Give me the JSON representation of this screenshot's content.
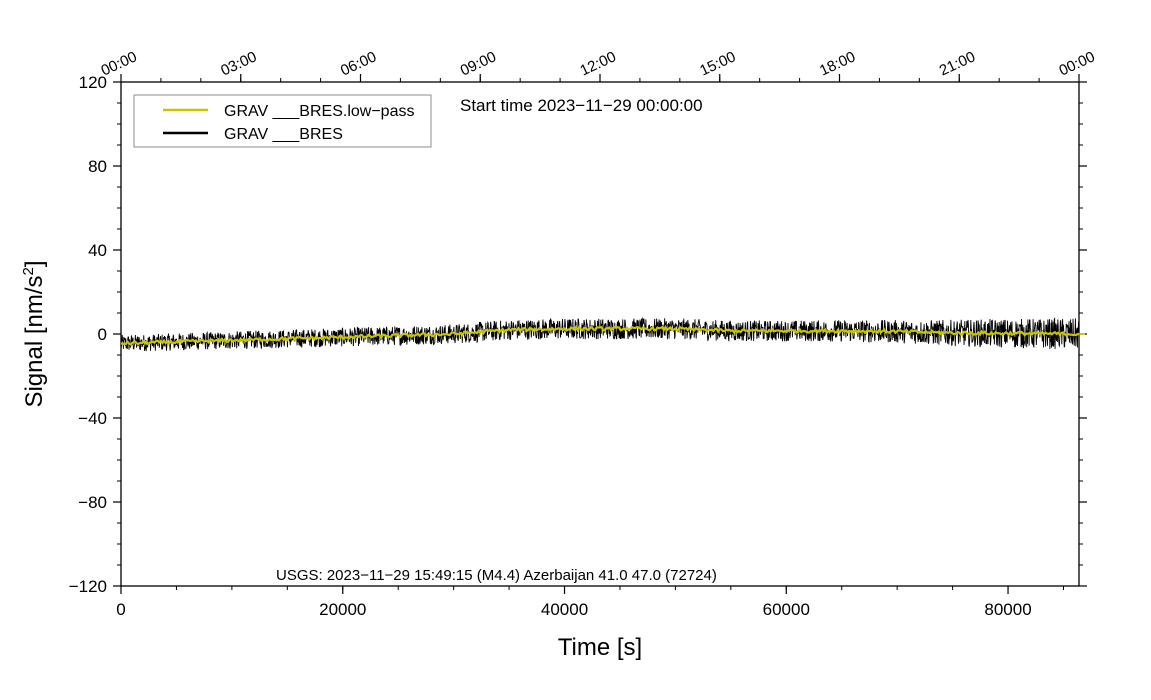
{
  "chart_data": {
    "type": "line",
    "x_unit": "s",
    "xlabel": "Time [s]",
    "ylabel": "Signal [nm/s",
    "ylabel_superscript": "2",
    "ylabel_suffix": "]",
    "xlim": [
      0,
      86400
    ],
    "ylim": [
      -120,
      120
    ],
    "x_ticks": [
      0,
      20000,
      40000,
      60000,
      80000
    ],
    "x_tick_labels": [
      "0",
      "20000",
      "40000",
      "60000",
      "80000"
    ],
    "y_ticks": [
      -120,
      -80,
      -40,
      0,
      40,
      80,
      120
    ],
    "y_tick_labels": [
      "−120",
      "−80",
      "−40",
      "0",
      "40",
      "80",
      "120"
    ],
    "top_axis_labels": [
      "00:00",
      "03:00",
      "06:00",
      "09:00",
      "12:00",
      "15:00",
      "18:00",
      "21:00",
      "00:00"
    ],
    "top_axis_seconds": [
      0,
      10800,
      21600,
      32400,
      43200,
      54000,
      64800,
      75600,
      86400
    ],
    "annotation": "Start time 2023−11−29 00:00:00",
    "event_label": "USGS: 2023−11−29 15:49:15 (M4.4) Azerbaijan 41.0 47.0 (72724)",
    "legend_position": "top-left",
    "grid": false,
    "series": [
      {
        "name": "GRAV ___BRES.low−pass",
        "color": "#c8c400",
        "trend_x": [
          0,
          10000,
          20000,
          30000,
          35000,
          40000,
          45000,
          50000,
          55000,
          60000,
          65000,
          70000,
          75000,
          80000,
          86400
        ],
        "trend_y": [
          -4.5,
          -3,
          -1.5,
          0,
          2,
          2.5,
          2.5,
          2.5,
          1.5,
          1.5,
          1.5,
          1.2,
          0.5,
          0.3,
          0
        ]
      },
      {
        "name": "GRAV ___BRES",
        "color": "#000000",
        "trend_x": [
          0,
          10000,
          20000,
          30000,
          35000,
          40000,
          45000,
          50000,
          55000,
          60000,
          65000,
          70000,
          75000,
          80000,
          86400
        ],
        "trend_y": [
          -4.5,
          -3,
          -1.5,
          0,
          2,
          2.5,
          2.5,
          2.5,
          1.5,
          1.5,
          1.5,
          1.2,
          0.5,
          0.3,
          0
        ],
        "noise_x": [
          0,
          20000,
          40000,
          60000,
          70000,
          80000,
          86400
        ],
        "noise_amplitude": [
          4,
          4.5,
          5,
          5,
          5.5,
          7,
          7.5
        ]
      }
    ]
  }
}
